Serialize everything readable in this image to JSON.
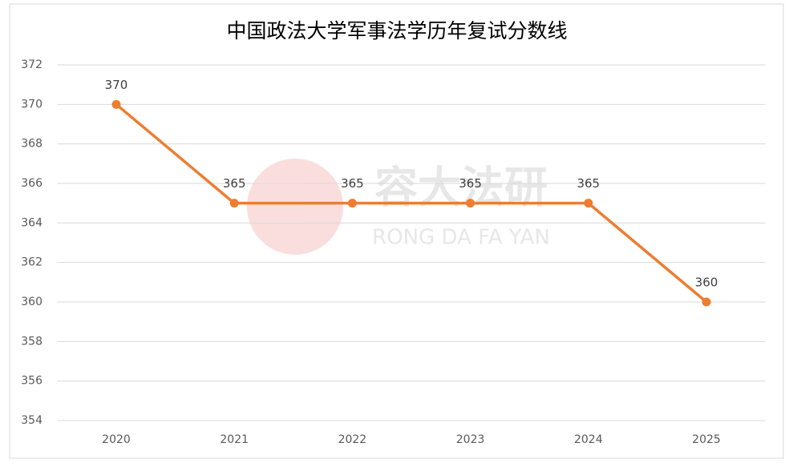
{
  "chart_data": {
    "type": "line",
    "title": "中国政法大学军事法学历年复试分数线",
    "categories": [
      "2020",
      "2021",
      "2022",
      "2023",
      "2024",
      "2025"
    ],
    "values": [
      370,
      365,
      365,
      365,
      365,
      360
    ],
    "color": "#ed7d31",
    "ylim": [
      354,
      372
    ],
    "yticks": [
      354,
      356,
      358,
      360,
      362,
      364,
      366,
      368,
      370,
      372
    ],
    "grid": true,
    "watermark": {
      "title": "容大法研",
      "subtitle": "RONG DA FA YAN"
    }
  }
}
